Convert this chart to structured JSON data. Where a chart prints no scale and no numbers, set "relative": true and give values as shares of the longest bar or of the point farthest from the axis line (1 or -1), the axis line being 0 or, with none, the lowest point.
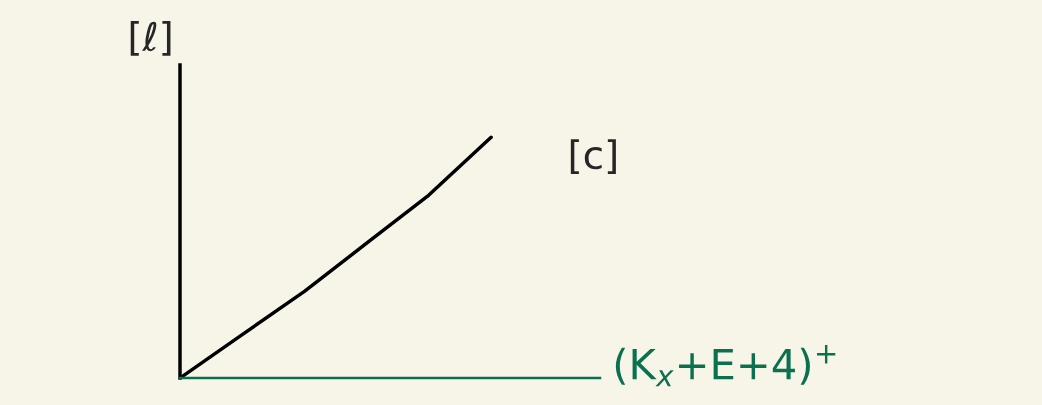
{
  "chart_data": {
    "type": "line",
    "relative": true,
    "categories": [
      null,
      null,
      null,
      null,
      null,
      null
    ],
    "series": [
      {
        "color": "#000000",
        "values": [
          0,
          0.18,
          0.36,
          0.56,
          0.76,
          1
        ]
      }
    ],
    "ylabel": "[ℓ]",
    "xlabel": "(K$_{x}$+E+4)$^{+}$",
    "annotations": [
      "[c]"
    ],
    "marker": "none",
    "line_style": "solid",
    "legend": false
  }
}
